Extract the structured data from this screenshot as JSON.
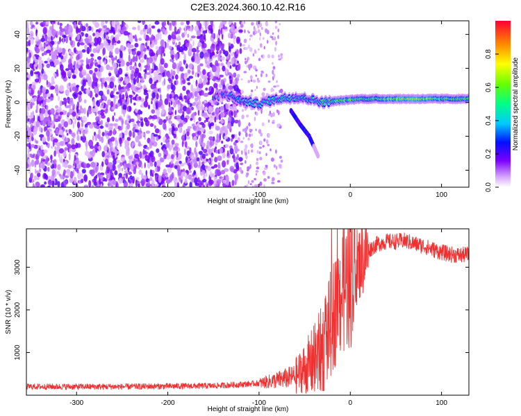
{
  "title": "C2E3.2024.360.10.42.R16",
  "chart_data": [
    {
      "type": "heatmap",
      "xlabel": "Height of straight line (km)",
      "ylabel": "Frequency (Hz)",
      "xlim": [
        -355,
        130
      ],
      "ylim": [
        -50,
        48
      ],
      "xticks": [
        -300,
        -200,
        -100,
        0,
        100
      ],
      "xtick_labels": [
        "-300",
        "-200",
        "-100",
        "0",
        "100"
      ],
      "yticks": [
        -40,
        -20,
        0,
        20,
        40
      ],
      "ytick_labels": [
        "-40",
        "-20",
        "0",
        "20",
        "40"
      ],
      "colorbar": {
        "label": "Normalized spectral amplitude",
        "range": [
          0,
          1
        ],
        "ticks": [
          0.0,
          0.2,
          0.4,
          0.6,
          0.8
        ],
        "tick_labels": [
          "0.0",
          "0.2",
          "0.4",
          "0.6",
          "0.8"
        ]
      },
      "noise_region_x": [
        -355,
        -120
      ],
      "sparse_noise_region_x": [
        -120,
        -75
      ],
      "signal_track": [
        {
          "x": -150,
          "f": 3,
          "amp": 0.25
        },
        {
          "x": -135,
          "f": 5,
          "amp": 0.25
        },
        {
          "x": -120,
          "f": 1,
          "amp": 0.35
        },
        {
          "x": -100,
          "f": -1,
          "amp": 0.45
        },
        {
          "x": -80,
          "f": 2,
          "amp": 0.45
        },
        {
          "x": -60,
          "f": 3,
          "amp": 0.45
        },
        {
          "x": -45,
          "f": 2,
          "amp": 0.4
        },
        {
          "x": -30,
          "f": 0,
          "amp": 0.5
        },
        {
          "x": -10,
          "f": 1,
          "amp": 0.6
        },
        {
          "x": 10,
          "f": 2,
          "amp": 0.5
        },
        {
          "x": 40,
          "f": 2,
          "amp": 0.6
        },
        {
          "x": 70,
          "f": 2,
          "amp": 0.7
        },
        {
          "x": 100,
          "f": 2,
          "amp": 0.55
        },
        {
          "x": 130,
          "f": 2,
          "amp": 0.55
        }
      ],
      "branch_track": [
        {
          "x": -65,
          "f": -5
        },
        {
          "x": -55,
          "f": -13
        },
        {
          "x": -45,
          "f": -20
        },
        {
          "x": -40,
          "f": -26
        },
        {
          "x": -35,
          "f": -32
        }
      ]
    },
    {
      "type": "line",
      "xlabel": "Height of straight line (km)",
      "ylabel": "SNR (10 * v/v)",
      "xlim": [
        -355,
        130
      ],
      "ylim": [
        0,
        3900
      ],
      "xticks": [
        -300,
        -200,
        -100,
        0,
        100
      ],
      "xtick_labels": [
        "-300",
        "-200",
        "-100",
        "0",
        "100"
      ],
      "yticks": [
        1000,
        2000,
        3000
      ],
      "ytick_labels": [
        "1000",
        "2000",
        "3000"
      ],
      "series": [
        {
          "name": "SNR",
          "color": "#f03030",
          "x": [
            -355,
            -300,
            -250,
            -200,
            -150,
            -120,
            -100,
            -80,
            -60,
            -50,
            -40,
            -30,
            -25,
            -20,
            -15,
            -10,
            -5,
            0,
            10,
            20,
            30,
            40,
            50,
            60,
            70,
            80,
            90,
            100,
            110,
            120,
            130
          ],
          "y": [
            200,
            200,
            200,
            210,
            220,
            250,
            280,
            350,
            450,
            600,
            800,
            1100,
            1400,
            1800,
            2100,
            2400,
            2600,
            2800,
            3100,
            3400,
            3550,
            3600,
            3600,
            3620,
            3550,
            3500,
            3420,
            3350,
            3300,
            3280,
            3300
          ]
        }
      ]
    }
  ]
}
